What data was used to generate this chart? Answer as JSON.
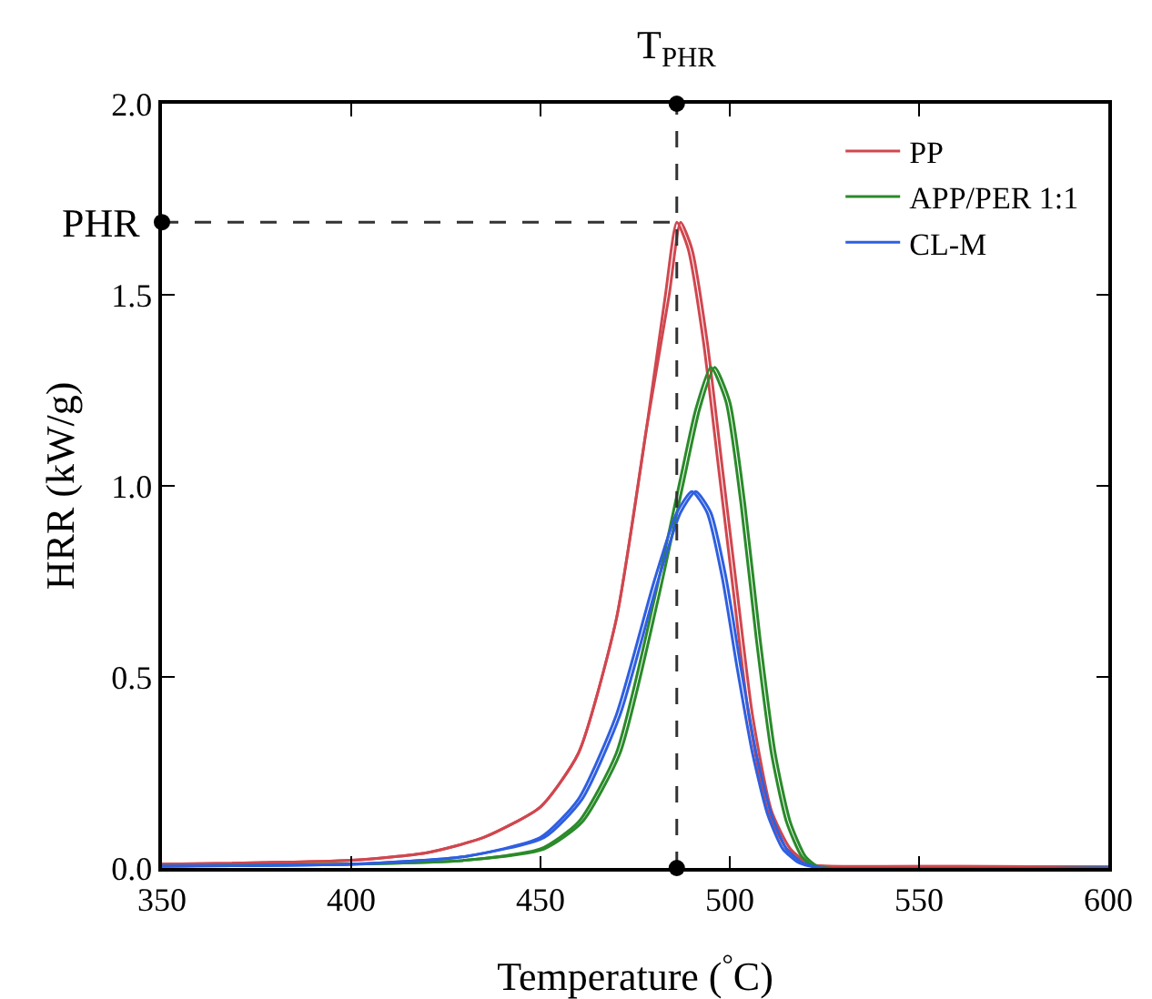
{
  "chart_data": {
    "type": "line",
    "xlabel": "Temperature ($^{°}$C)",
    "ylabel": "HRR (kW/g)",
    "xlim": [
      350,
      600
    ],
    "xticks": [
      350,
      400,
      450,
      500,
      550,
      600
    ],
    "ylim": [
      0,
      2.0
    ],
    "yticks": [
      {
        "value": 0,
        "label": "0.0"
      },
      0.5,
      {
        "value": 1,
        "label": "1.0"
      },
      1.5,
      {
        "value": 2,
        "label": "2.0"
      }
    ],
    "grid": false,
    "legend": "top right",
    "marker": "none",
    "line_style": "solid",
    "series": [
      {
        "name": "PP",
        "color": "#d0474f",
        "x": [
          350,
          400,
          420,
          435,
          450,
          460,
          470,
          478,
          483,
          486,
          489,
          493,
          497,
          501,
          505,
          510,
          515,
          520,
          525,
          560,
          600
        ],
        "values": [
          0.01,
          0.02,
          0.04,
          0.08,
          0.16,
          0.3,
          0.65,
          1.15,
          1.5,
          1.69,
          1.62,
          1.38,
          1.05,
          0.72,
          0.4,
          0.15,
          0.05,
          0.01,
          0.005,
          0.004,
          0.003
        ]
      },
      {
        "color": "#d0474f",
        "x": [
          350,
          400,
          420,
          435,
          450,
          460,
          470,
          478,
          484,
          487,
          490,
          494,
          498,
          502,
          506,
          511,
          516,
          521,
          525,
          560,
          600
        ],
        "values": [
          0.01,
          0.02,
          0.04,
          0.08,
          0.16,
          0.3,
          0.65,
          1.15,
          1.5,
          1.69,
          1.62,
          1.38,
          1.05,
          0.72,
          0.4,
          0.15,
          0.05,
          0.01,
          0.005,
          0.004,
          0.003
        ]
      },
      {
        "name": "APP/PER 1:1",
        "color": "#2a8a2a",
        "x": [
          350,
          400,
          430,
          450,
          460,
          470,
          480,
          487,
          491,
          495,
          499,
          503,
          507,
          511,
          515,
          519,
          522,
          525,
          600
        ],
        "values": [
          0.005,
          0.01,
          0.02,
          0.05,
          0.12,
          0.3,
          0.7,
          1.02,
          1.2,
          1.31,
          1.22,
          0.95,
          0.6,
          0.3,
          0.12,
          0.03,
          0.005,
          0,
          0
        ]
      },
      {
        "color": "#2a8a2a",
        "x": [
          350,
          400,
          430,
          451,
          461,
          471,
          481,
          488,
          492,
          496,
          500,
          504,
          508,
          512,
          516,
          520,
          523,
          525,
          600
        ],
        "values": [
          0.005,
          0.01,
          0.02,
          0.05,
          0.12,
          0.3,
          0.7,
          1.02,
          1.2,
          1.31,
          1.22,
          0.95,
          0.6,
          0.3,
          0.12,
          0.03,
          0.005,
          0,
          0
        ]
      },
      {
        "name": "CL-M",
        "color": "#2f5fe0",
        "x": [
          350,
          400,
          430,
          450,
          460,
          470,
          480,
          486,
          490,
          494,
          498,
          502,
          506,
          510,
          514,
          518,
          521,
          524,
          600
        ],
        "values": [
          0.005,
          0.01,
          0.03,
          0.08,
          0.18,
          0.4,
          0.75,
          0.93,
          0.985,
          0.93,
          0.76,
          0.52,
          0.3,
          0.14,
          0.05,
          0.015,
          0.005,
          0,
          0
        ]
      },
      {
        "color": "#2f5fe0",
        "x": [
          350,
          400,
          430,
          451,
          461,
          471,
          481,
          487,
          491,
          495,
          499,
          503,
          507,
          511,
          515,
          519,
          522,
          524,
          600
        ],
        "values": [
          0.005,
          0.01,
          0.03,
          0.08,
          0.18,
          0.4,
          0.75,
          0.93,
          0.985,
          0.93,
          0.76,
          0.52,
          0.3,
          0.14,
          0.05,
          0.015,
          0.005,
          0,
          0
        ]
      }
    ],
    "ref_lines": [
      {
        "axis": "x",
        "value": 486,
        "label": "T$_{PHR}$",
        "color": "#333333",
        "line_style": "dashed"
      },
      {
        "axis": "y",
        "value": 1.69,
        "label": "PHR",
        "color": "#333333",
        "line_style": "dashed"
      }
    ]
  }
}
